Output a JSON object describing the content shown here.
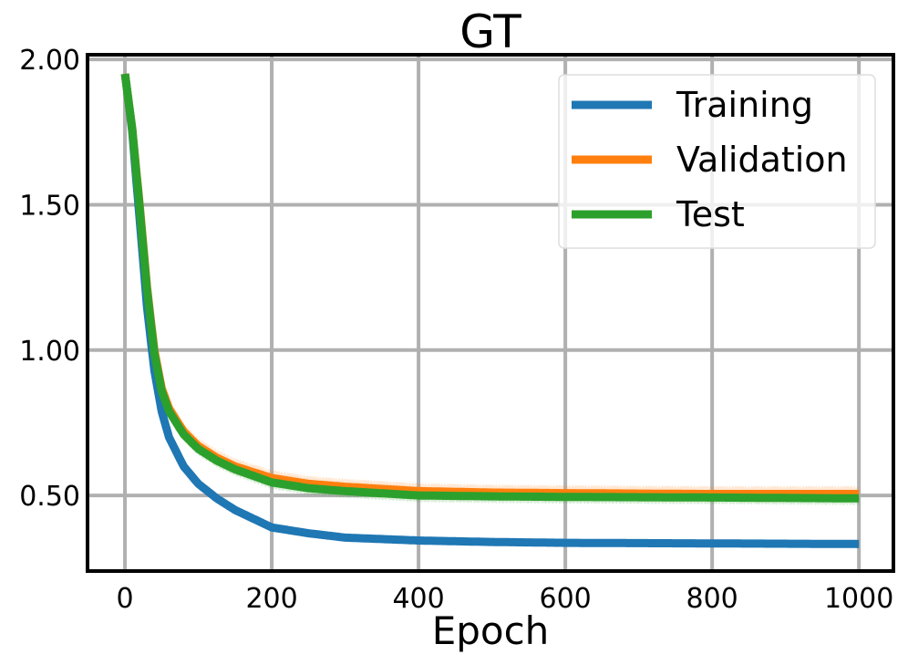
{
  "chart_data": {
    "type": "line",
    "title": "GT",
    "xlabel": "Epoch",
    "ylabel": "",
    "xlim": [
      -51,
      1047
    ],
    "ylim": [
      0.24,
      2.016
    ],
    "xticks": [
      0,
      200,
      400,
      600,
      800,
      1000
    ],
    "xtick_labels": [
      "0",
      "200",
      "400",
      "600",
      "800",
      "1000"
    ],
    "yticks": [
      0.5,
      1.0,
      1.5,
      2.0
    ],
    "ytick_labels": [
      "0.50",
      "1.00",
      "1.50",
      "2.00"
    ],
    "grid": true,
    "legend_position": "top-right",
    "x": [
      0,
      10,
      20,
      30,
      40,
      50,
      60,
      80,
      100,
      125,
      150,
      200,
      250,
      300,
      400,
      500,
      600,
      800,
      1000
    ],
    "series": [
      {
        "name": "Training",
        "color": "#1f77b4",
        "band": 0,
        "values": [
          1.95,
          1.75,
          1.45,
          1.15,
          0.93,
          0.79,
          0.7,
          0.6,
          0.54,
          0.49,
          0.45,
          0.39,
          0.37,
          0.355,
          0.345,
          0.34,
          0.337,
          0.335,
          0.333
        ]
      },
      {
        "name": "Validation",
        "color": "#ff7f0e",
        "band": 0.03,
        "values": [
          1.95,
          1.76,
          1.5,
          1.22,
          1.0,
          0.87,
          0.8,
          0.72,
          0.67,
          0.63,
          0.6,
          0.56,
          0.54,
          0.53,
          0.515,
          0.51,
          0.508,
          0.505,
          0.505
        ]
      },
      {
        "name": "Test",
        "color": "#2ca02c",
        "band": 0.025,
        "values": [
          1.95,
          1.76,
          1.49,
          1.21,
          0.99,
          0.86,
          0.79,
          0.71,
          0.66,
          0.62,
          0.59,
          0.545,
          0.525,
          0.515,
          0.5,
          0.497,
          0.495,
          0.493,
          0.49
        ]
      }
    ]
  }
}
